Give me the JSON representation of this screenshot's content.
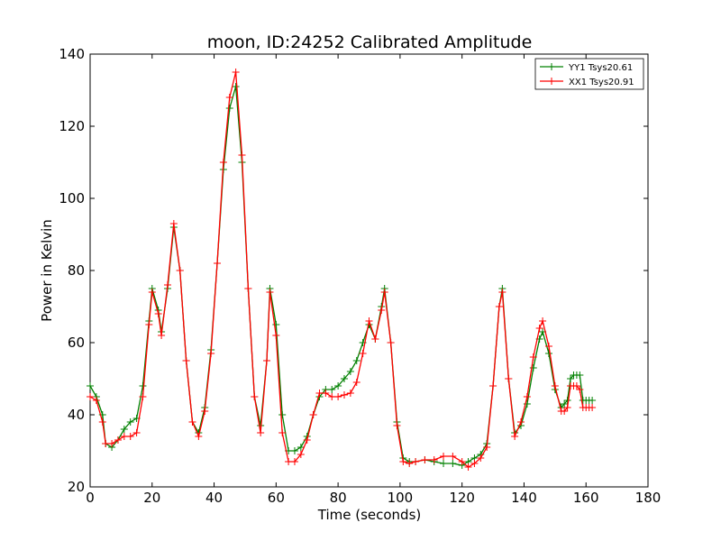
{
  "chart_data": {
    "type": "line",
    "title": "moon, ID:24252 Calibrated Amplitude",
    "xlabel": "Time (seconds)",
    "ylabel": "Power in Kelvin",
    "xlim": [
      0,
      180
    ],
    "ylim": [
      20,
      140
    ],
    "xticks": [
      "0",
      "20",
      "40",
      "60",
      "80",
      "100",
      "120",
      "140",
      "160",
      "180"
    ],
    "yticks": [
      "20",
      "40",
      "60",
      "80",
      "100",
      "120",
      "140"
    ],
    "grid": false,
    "legend_position": "top-right",
    "marker": "+",
    "series": [
      {
        "name": "YY1 Tsys20.61",
        "color": "#008000",
        "x": [
          0,
          2,
          4,
          5,
          7,
          9,
          11,
          13,
          15,
          17,
          19,
          20,
          22,
          23,
          25,
          27,
          29,
          31,
          33,
          35,
          37,
          39,
          41,
          43,
          45,
          47,
          49,
          51,
          53,
          55,
          57,
          58,
          60,
          62,
          64,
          66,
          68,
          70,
          72,
          74,
          76,
          78,
          80,
          82,
          84,
          86,
          88,
          90,
          92,
          94,
          95,
          97,
          99,
          101,
          103,
          105,
          108,
          111,
          114,
          117,
          120,
          122,
          124,
          126,
          128,
          130,
          132,
          133,
          135,
          137,
          139,
          141,
          143,
          145,
          146,
          148,
          150,
          152,
          153,
          154,
          155,
          156,
          157,
          158,
          159,
          160,
          161,
          162
        ],
        "values": [
          48,
          45,
          40,
          32,
          31,
          33,
          36,
          38,
          39,
          48,
          66,
          75,
          69,
          63,
          75,
          92,
          80,
          55,
          38,
          35,
          42,
          58,
          82,
          108,
          125,
          131,
          110,
          75,
          45,
          37,
          55,
          75,
          65,
          40,
          30,
          30,
          31,
          34,
          40,
          45,
          47,
          47,
          48,
          50,
          52,
          55,
          60,
          65,
          61,
          70,
          75,
          60,
          38,
          28,
          27,
          27,
          27.5,
          27,
          26.5,
          26.5,
          26,
          27,
          28,
          29,
          32,
          48,
          70,
          75,
          50,
          35,
          37,
          43,
          53,
          61,
          63,
          57,
          47,
          42,
          43,
          44,
          50,
          51,
          51,
          51,
          44,
          44,
          44,
          44
        ]
      },
      {
        "name": "XX1 Tsys20.91",
        "color": "#ff0000",
        "x": [
          0,
          2,
          4,
          5,
          7,
          9,
          11,
          13,
          15,
          17,
          19,
          20,
          22,
          23,
          25,
          27,
          29,
          31,
          33,
          35,
          37,
          39,
          41,
          43,
          45,
          47,
          49,
          51,
          53,
          55,
          57,
          58,
          60,
          62,
          64,
          66,
          68,
          70,
          72,
          74,
          76,
          78,
          80,
          82,
          84,
          86,
          88,
          90,
          92,
          94,
          95,
          97,
          99,
          101,
          103,
          105,
          108,
          111,
          114,
          117,
          120,
          122,
          124,
          126,
          128,
          130,
          132,
          133,
          135,
          137,
          139,
          141,
          143,
          145,
          146,
          148,
          150,
          152,
          153,
          154,
          155,
          156,
          157,
          158,
          159,
          160,
          161,
          162
        ],
        "values": [
          45,
          44,
          38,
          32,
          32,
          33,
          34,
          34,
          35,
          45,
          65,
          74,
          68,
          62,
          76,
          93,
          80,
          55,
          38,
          34,
          41,
          57,
          82,
          110,
          128,
          135,
          112,
          75,
          45,
          35,
          55,
          74,
          62,
          35,
          27,
          27,
          29,
          33,
          40,
          46,
          46,
          45,
          45,
          45.5,
          46,
          49,
          57,
          66,
          61,
          69,
          74,
          60,
          37,
          27,
          26.5,
          27,
          27.5,
          27.5,
          28.5,
          28.5,
          27,
          25.5,
          26.5,
          28,
          31,
          48,
          70,
          74,
          50,
          34,
          38,
          45,
          56,
          64,
          66,
          59,
          48,
          41,
          41,
          42,
          48,
          48,
          48,
          47,
          42,
          42,
          42,
          42
        ]
      }
    ]
  }
}
